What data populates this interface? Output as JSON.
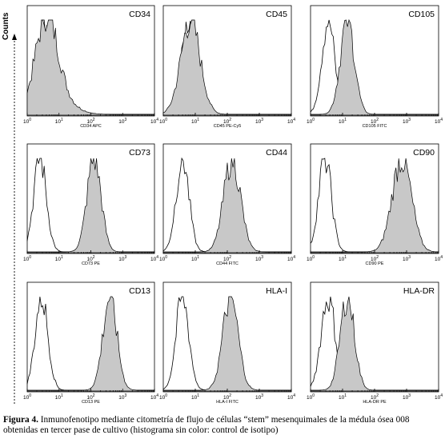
{
  "axis": {
    "ylabel": "Counts",
    "x_ticks": [
      "10",
      "10",
      "10",
      "10",
      "10"
    ],
    "x_tick_exponents": [
      "0",
      "1",
      "2",
      "3",
      "4"
    ]
  },
  "chart_data": [
    {
      "type": "area",
      "marker": "CD34",
      "xlabel": "CD34 APC",
      "x_scale": "log",
      "xlim": [
        1,
        10000
      ],
      "series": [
        {
          "role": "isotype control",
          "fill": "none",
          "peak_log10": 0.55,
          "width_log10": 0.22
        },
        {
          "role": "marker",
          "fill": "#c8c8c8",
          "peak_log10": 0.6,
          "width_log10": 0.35,
          "tail": true
        }
      ]
    },
    {
      "type": "area",
      "marker": "CD45",
      "xlabel": "CD45 PE-Cy5",
      "x_scale": "log",
      "xlim": [
        1,
        10000
      ],
      "series": [
        {
          "role": "isotype control",
          "fill": "none",
          "peak_log10": 0.8,
          "width_log10": 0.22
        },
        {
          "role": "marker",
          "fill": "#c8c8c8",
          "peak_log10": 0.85,
          "width_log10": 0.3
        }
      ]
    },
    {
      "type": "area",
      "marker": "CD105",
      "xlabel": "CD105 FITC",
      "x_scale": "log",
      "xlim": [
        1,
        10000
      ],
      "series": [
        {
          "role": "isotype control",
          "fill": "none",
          "peak_log10": 0.55,
          "width_log10": 0.2
        },
        {
          "role": "marker",
          "fill": "#c8c8c8",
          "peak_log10": 1.15,
          "width_log10": 0.22
        }
      ]
    },
    {
      "type": "area",
      "marker": "CD73",
      "xlabel": "CD73 PE",
      "x_scale": "log",
      "xlim": [
        1,
        10000
      ],
      "series": [
        {
          "role": "isotype control",
          "fill": "none",
          "peak_log10": 0.4,
          "width_log10": 0.2
        },
        {
          "role": "marker",
          "fill": "#c8c8c8",
          "peak_log10": 2.1,
          "width_log10": 0.22
        }
      ]
    },
    {
      "type": "area",
      "marker": "CD44",
      "xlabel": "CD44 FITC",
      "x_scale": "log",
      "xlim": [
        1,
        10000
      ],
      "series": [
        {
          "role": "isotype control",
          "fill": "none",
          "peak_log10": 0.6,
          "width_log10": 0.2
        },
        {
          "role": "marker",
          "fill": "#c8c8c8",
          "peak_log10": 2.15,
          "width_log10": 0.26
        }
      ]
    },
    {
      "type": "area",
      "marker": "CD90",
      "xlabel": "CD90 PE",
      "x_scale": "log",
      "xlim": [
        1,
        10000
      ],
      "series": [
        {
          "role": "isotype control",
          "fill": "none",
          "peak_log10": 0.45,
          "width_log10": 0.2
        },
        {
          "role": "marker",
          "fill": "#c8c8c8",
          "peak_log10": 2.85,
          "width_log10": 0.3
        }
      ]
    },
    {
      "type": "area",
      "marker": "CD13",
      "xlabel": "CD13 PE",
      "x_scale": "log",
      "xlim": [
        1,
        10000
      ],
      "series": [
        {
          "role": "isotype control",
          "fill": "none",
          "peak_log10": 0.45,
          "width_log10": 0.2
        },
        {
          "role": "marker",
          "fill": "#c8c8c8",
          "peak_log10": 2.6,
          "width_log10": 0.22
        }
      ]
    },
    {
      "type": "area",
      "marker": "HLA-I",
      "xlabel": "HLA-I FITC",
      "x_scale": "log",
      "xlim": [
        1,
        10000
      ],
      "series": [
        {
          "role": "isotype control",
          "fill": "none",
          "peak_log10": 0.6,
          "width_log10": 0.2
        },
        {
          "role": "marker",
          "fill": "#c8c8c8",
          "peak_log10": 2.1,
          "width_log10": 0.24
        }
      ]
    },
    {
      "type": "area",
      "marker": "HLA-DR",
      "xlabel": "HLA-DR PE",
      "x_scale": "log",
      "xlim": [
        1,
        10000
      ],
      "series": [
        {
          "role": "isotype control",
          "fill": "none",
          "peak_log10": 0.55,
          "width_log10": 0.22
        },
        {
          "role": "marker",
          "fill": "#c8c8c8",
          "peak_log10": 1.15,
          "width_log10": 0.22
        }
      ]
    }
  ],
  "caption": {
    "label": "Figura 4.",
    "text": " Inmunofenotipo mediante citometría de flujo de células “stem” mesenquimales de la médula ósea 008 obtenidas en tercer pase de cultivo (histograma sin color: control de isotipo)"
  }
}
